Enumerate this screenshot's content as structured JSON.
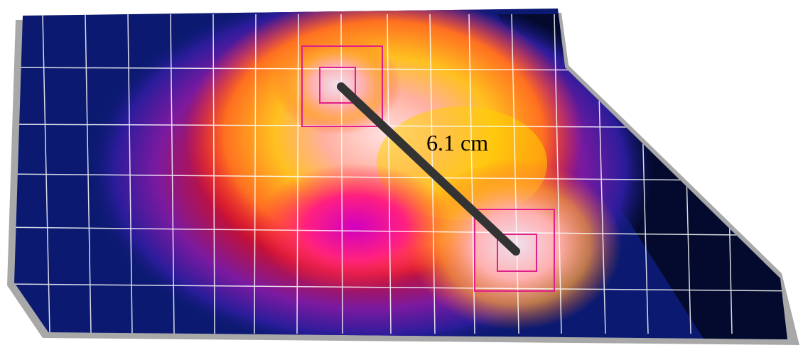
{
  "annotation": "6.1 cm"
}
